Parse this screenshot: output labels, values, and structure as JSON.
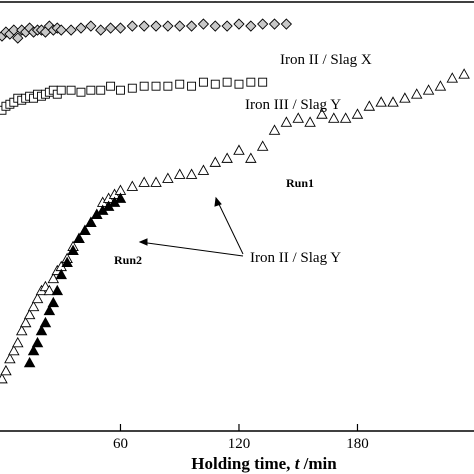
{
  "chart_data": {
    "type": "scatter",
    "xlabel": "Holding time, t /min",
    "xlabel_parts": {
      "prefix": "Holding time, ",
      "italic": "t",
      "suffix": " /min"
    },
    "xticks": [
      60,
      120,
      180
    ],
    "xlim": [
      -1,
      239
    ],
    "grid": false,
    "annotations": [
      "Iron II / Slag X",
      "Iron III / Slag Y",
      "Iron II / Slag Y",
      "Run1",
      "Run2"
    ],
    "series": [
      {
        "name": "Iron II / Slag X",
        "marker": "diamond-open",
        "x": [
          0,
          2,
          4,
          6,
          8,
          10,
          12,
          14,
          16,
          18,
          20,
          22,
          24,
          26,
          28,
          30,
          35,
          40,
          45,
          50,
          55,
          60,
          66,
          72,
          78,
          84,
          90,
          96,
          102,
          108,
          114,
          120,
          126,
          132,
          138,
          144
        ],
        "y": [
          0.935,
          0.945,
          0.94,
          0.95,
          0.93,
          0.95,
          0.945,
          0.955,
          0.945,
          0.95,
          0.95,
          0.945,
          0.96,
          0.95,
          0.955,
          0.95,
          0.95,
          0.955,
          0.96,
          0.95,
          0.955,
          0.955,
          0.96,
          0.96,
          0.96,
          0.96,
          0.96,
          0.96,
          0.965,
          0.96,
          0.96,
          0.965,
          0.96,
          0.965,
          0.965,
          0.965
        ]
      },
      {
        "name": "Iron III / Slag Y",
        "marker": "square-open",
        "x": [
          0,
          2,
          4,
          6,
          8,
          10,
          12,
          14,
          16,
          18,
          20,
          22,
          24,
          26,
          28,
          30,
          35,
          40,
          45,
          50,
          55,
          60,
          66,
          72,
          78,
          84,
          90,
          96,
          102,
          108,
          114,
          120,
          126,
          132
        ],
        "y": [
          0.75,
          0.76,
          0.765,
          0.77,
          0.78,
          0.775,
          0.78,
          0.785,
          0.78,
          0.79,
          0.785,
          0.79,
          0.795,
          0.8,
          0.79,
          0.8,
          0.8,
          0.795,
          0.8,
          0.8,
          0.81,
          0.8,
          0.805,
          0.81,
          0.81,
          0.81,
          0.815,
          0.81,
          0.82,
          0.815,
          0.82,
          0.815,
          0.82,
          0.82
        ]
      },
      {
        "name": "Iron II / Slag Y - Run1",
        "marker": "triangle-open",
        "x": [
          0,
          2,
          4,
          6,
          8,
          10,
          12,
          14,
          16,
          18,
          20,
          22,
          24,
          26,
          28,
          30,
          33,
          36,
          39,
          42,
          45,
          48,
          51,
          54,
          57,
          60,
          66,
          72,
          78,
          84,
          90,
          96,
          102,
          108,
          114,
          120,
          126,
          132,
          138,
          144,
          150,
          156,
          162,
          168,
          174,
          180,
          186,
          192,
          198,
          204,
          210,
          216,
          222,
          228,
          234
        ],
        "y": [
          0.08,
          0.1,
          0.13,
          0.15,
          0.17,
          0.2,
          0.22,
          0.24,
          0.26,
          0.28,
          0.3,
          0.31,
          0.3,
          0.33,
          0.35,
          0.36,
          0.38,
          0.41,
          0.43,
          0.45,
          0.47,
          0.49,
          0.52,
          0.53,
          0.54,
          0.55,
          0.56,
          0.57,
          0.57,
          0.58,
          0.59,
          0.59,
          0.6,
          0.62,
          0.63,
          0.65,
          0.63,
          0.66,
          0.7,
          0.72,
          0.73,
          0.72,
          0.74,
          0.73,
          0.73,
          0.74,
          0.76,
          0.77,
          0.77,
          0.78,
          0.79,
          0.8,
          0.81,
          0.83,
          0.84
        ]
      },
      {
        "name": "Iron II / Slag Y - Run2",
        "marker": "triangle-filled",
        "x": [
          14,
          16,
          18,
          20,
          22,
          24,
          26,
          28,
          30,
          33,
          36,
          39,
          42,
          45,
          48,
          51,
          54,
          57,
          60
        ],
        "y": [
          0.12,
          0.15,
          0.17,
          0.2,
          0.22,
          0.25,
          0.27,
          0.3,
          0.34,
          0.37,
          0.4,
          0.43,
          0.45,
          0.47,
          0.49,
          0.5,
          0.51,
          0.52,
          0.53
        ]
      }
    ]
  }
}
